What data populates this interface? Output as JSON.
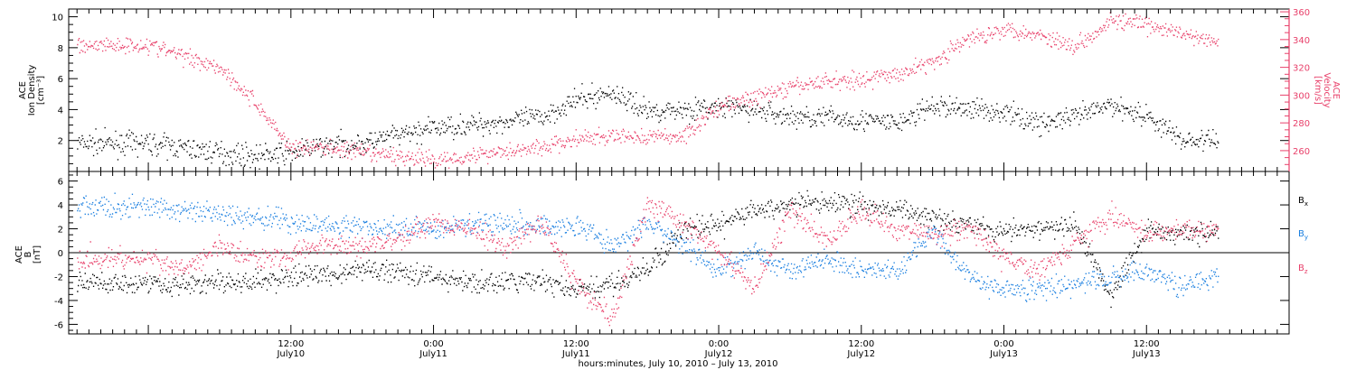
{
  "chart_data": [
    {
      "type": "scatter",
      "panel": "top",
      "ylabel_left": [
        "ACE",
        "Ion Density",
        "[cm⁻³]"
      ],
      "ylabel_right": [
        "ACE",
        "Velocity",
        "[km/s]"
      ],
      "ylim_left": [
        0,
        10.5
      ],
      "ylim_right": [
        245,
        362
      ],
      "yticks_left": [
        "2",
        "4",
        "6",
        "8",
        "10"
      ],
      "yticks_right": [
        "260",
        "280",
        "300",
        "320",
        "340",
        "360"
      ],
      "right_axis_color": "#e8406a",
      "series": [
        {
          "name": "",
          "axis": "left",
          "color": "#000000",
          "x": [
            0,
            3,
            6,
            9,
            12,
            15,
            18,
            21,
            24,
            27,
            30,
            33,
            36,
            39,
            42,
            45,
            48,
            51,
            54,
            57,
            60,
            63,
            66,
            69,
            72,
            75,
            78,
            81,
            84,
            87,
            90
          ],
          "y": [
            1.8,
            1.5,
            1.2,
            1.0,
            1.2,
            1.7,
            1.8,
            2.3,
            2.8,
            3.0,
            3.2,
            3.5,
            4.6,
            5.1,
            3.9,
            4.0,
            4.1,
            4.0,
            3.5,
            3.5,
            3.3,
            3.1,
            4.2,
            4.1,
            3.8,
            3.1,
            3.5,
            4.3,
            3.6,
            2.0,
            2.0
          ]
        },
        {
          "name": "",
          "axis": "right",
          "color": "#e8406a",
          "x": [
            0,
            3,
            6,
            9,
            12,
            15,
            18,
            21,
            24,
            27,
            30,
            33,
            36,
            39,
            42,
            45,
            48,
            51,
            54,
            57,
            60,
            63,
            66,
            69,
            72,
            75,
            78,
            81,
            84,
            87,
            90
          ],
          "y": [
            336,
            328,
            320,
            294,
            262,
            262,
            258,
            256,
            253,
            256,
            260,
            262,
            268,
            270,
            270,
            270,
            292,
            298,
            305,
            310,
            311,
            315,
            324,
            340,
            348,
            343,
            335,
            354,
            350,
            344,
            337
          ]
        }
      ]
    },
    {
      "type": "scatter",
      "panel": "bottom",
      "ylabel_left": [
        "ACE",
        "B",
        "[nT]"
      ],
      "ylim": [
        -6.8,
        6.8
      ],
      "yticks": [
        "-6",
        "-4",
        "-2",
        "0",
        "2",
        "4",
        "6"
      ],
      "zero_line": true,
      "series": [
        {
          "name": "Bₓ",
          "color": "#000000",
          "x": [
            0,
            3,
            6,
            9,
            12,
            15,
            18,
            21,
            24,
            27,
            30,
            33,
            36,
            39,
            42,
            45,
            48,
            51,
            54,
            57,
            60,
            63,
            66,
            69,
            72,
            75,
            78,
            81,
            84,
            87,
            90
          ],
          "y": [
            -2.5,
            -2.7,
            -2.5,
            -2.5,
            -2.0,
            -1.8,
            -1.5,
            -1.5,
            -2.0,
            -2.6,
            -2.5,
            -2.3,
            -3.3,
            -2.6,
            -1.5,
            2.0,
            2.3,
            3.5,
            4.0,
            4.2,
            4.0,
            3.5,
            3.0,
            2.5,
            1.7,
            2.0,
            2.2,
            -3.5,
            2.0,
            1.5,
            1.8
          ]
        },
        {
          "name": "Bᵧ",
          "color": "#1a7fe0",
          "x": [
            0,
            3,
            6,
            9,
            12,
            15,
            18,
            21,
            24,
            27,
            30,
            33,
            36,
            39,
            42,
            45,
            48,
            51,
            54,
            57,
            60,
            63,
            66,
            69,
            72,
            75,
            78,
            81,
            84,
            87,
            90
          ],
          "y": [
            3.8,
            3.5,
            3.2,
            3.0,
            2.5,
            2.3,
            2.1,
            2.0,
            2.0,
            2.5,
            2.6,
            2.1,
            2.4,
            0.5,
            2.5,
            0.5,
            -1.5,
            0.0,
            -1.5,
            -0.5,
            -1.5,
            -1.5,
            1.8,
            -2.0,
            -3.2,
            -3.0,
            -2.8,
            -2.0,
            -1.5,
            -2.8,
            -2.0
          ]
        },
        {
          "name": "Bᶻ",
          "color": "#e8406a",
          "x": [
            0,
            3,
            6,
            9,
            12,
            15,
            18,
            21,
            24,
            27,
            30,
            33,
            36,
            39,
            42,
            45,
            48,
            51,
            54,
            57,
            60,
            63,
            66,
            69,
            72,
            75,
            78,
            81,
            84,
            87,
            90
          ],
          "y": [
            -0.5,
            -1.5,
            0.5,
            -0.5,
            -0.2,
            0.8,
            0.5,
            1.2,
            2.5,
            2.0,
            0.5,
            2.5,
            -2.5,
            -5.5,
            4.0,
            2.5,
            0.0,
            -3.0,
            3.5,
            1.0,
            3.5,
            2.0,
            1.5,
            2.0,
            -0.5,
            -1.5,
            1.0,
            3.0,
            1.5,
            2.0,
            1.8
          ]
        }
      ]
    }
  ],
  "time_axis": {
    "xlim_hours": [
      -6.7,
      96
    ],
    "ticks": [
      {
        "h": 12,
        "time": "12:00",
        "date": "July10"
      },
      {
        "h": 24,
        "time": "0:00",
        "date": "July11"
      },
      {
        "h": 36,
        "time": "12:00",
        "date": "July11"
      },
      {
        "h": 48,
        "time": "0:00",
        "date": "July12"
      },
      {
        "h": 60,
        "time": "12:00",
        "date": "July12"
      },
      {
        "h": 72,
        "time": "0:00",
        "date": "July13"
      },
      {
        "h": 84,
        "time": "12:00",
        "date": "July13"
      }
    ],
    "xlabel": "hours:minutes, July 10, 2010 – July 13, 2010"
  },
  "legend": [
    {
      "label": "B",
      "sub": "x",
      "color": "#000000"
    },
    {
      "label": "B",
      "sub": "y",
      "color": "#1a7fe0"
    },
    {
      "label": "B",
      "sub": "z",
      "color": "#e8406a"
    }
  ]
}
